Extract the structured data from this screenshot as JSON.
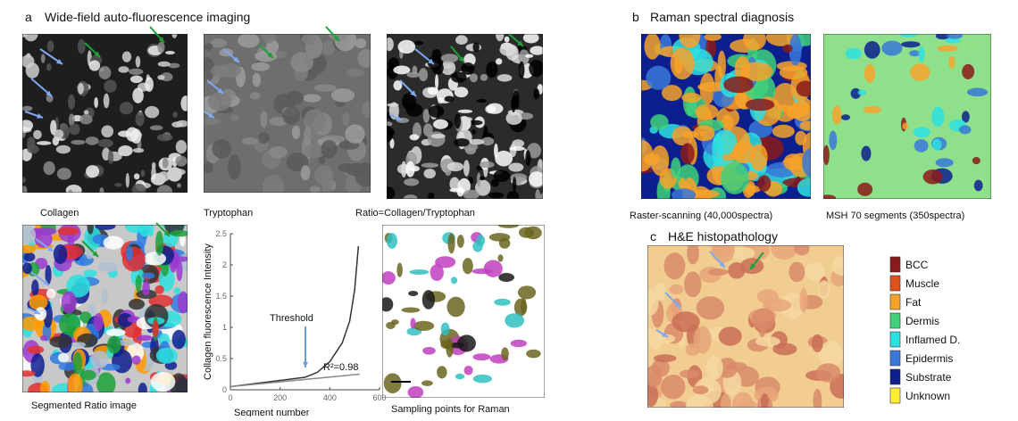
{
  "panels": {
    "a": {
      "label": "a",
      "title": "Wide-field auto-fluorescence imaging",
      "captions": [
        "Collagen",
        "Tryptophan",
        "Ratio=Collagen/Tryptophan",
        "Segmented Ratio image",
        "Sampling points for Raman"
      ]
    },
    "b": {
      "label": "b",
      "title": "Raman spectral diagnosis",
      "captions": [
        "Raster-scanning  (40,000spectra)",
        "MSH  70 segments (350spectra)"
      ]
    },
    "c": {
      "label": "c",
      "title": "H&E histopathology"
    }
  },
  "legend": [
    {
      "name": "BCC",
      "color": "#8b1a1a"
    },
    {
      "name": "Muscle",
      "color": "#e0521c"
    },
    {
      "name": "Fat",
      "color": "#f7a22a"
    },
    {
      "name": "Dermis",
      "color": "#3fd17a"
    },
    {
      "name": "Inflamed D.",
      "color": "#2de0e0"
    },
    {
      "name": "Epidermis",
      "color": "#3a78d8"
    },
    {
      "name": "Substrate",
      "color": "#0d1f8f"
    },
    {
      "name": "Unknown",
      "color": "#ffee33"
    }
  ],
  "chart_data": {
    "type": "line",
    "xlabel": "Segment number",
    "ylabel": "Collagen fluorescence Intensity",
    "xlim": [
      0,
      600
    ],
    "ylim": [
      0,
      2.5
    ],
    "xticks": [
      0,
      200,
      400,
      600
    ],
    "yticks": [
      0,
      0.5,
      1,
      1.5,
      2,
      2.5
    ],
    "series": [
      {
        "color": "#333333",
        "x": [
          0,
          100,
          200,
          300,
          350,
          400,
          450,
          480,
          500,
          515
        ],
        "values": [
          0.05,
          0.1,
          0.15,
          0.2,
          0.28,
          0.45,
          0.75,
          1.1,
          1.6,
          2.3
        ]
      },
      {
        "color": "#888888",
        "x": [
          0,
          520
        ],
        "values": [
          0.05,
          0.25
        ]
      }
    ],
    "annotations": [
      "Threshold",
      "R²=0.98"
    ]
  }
}
